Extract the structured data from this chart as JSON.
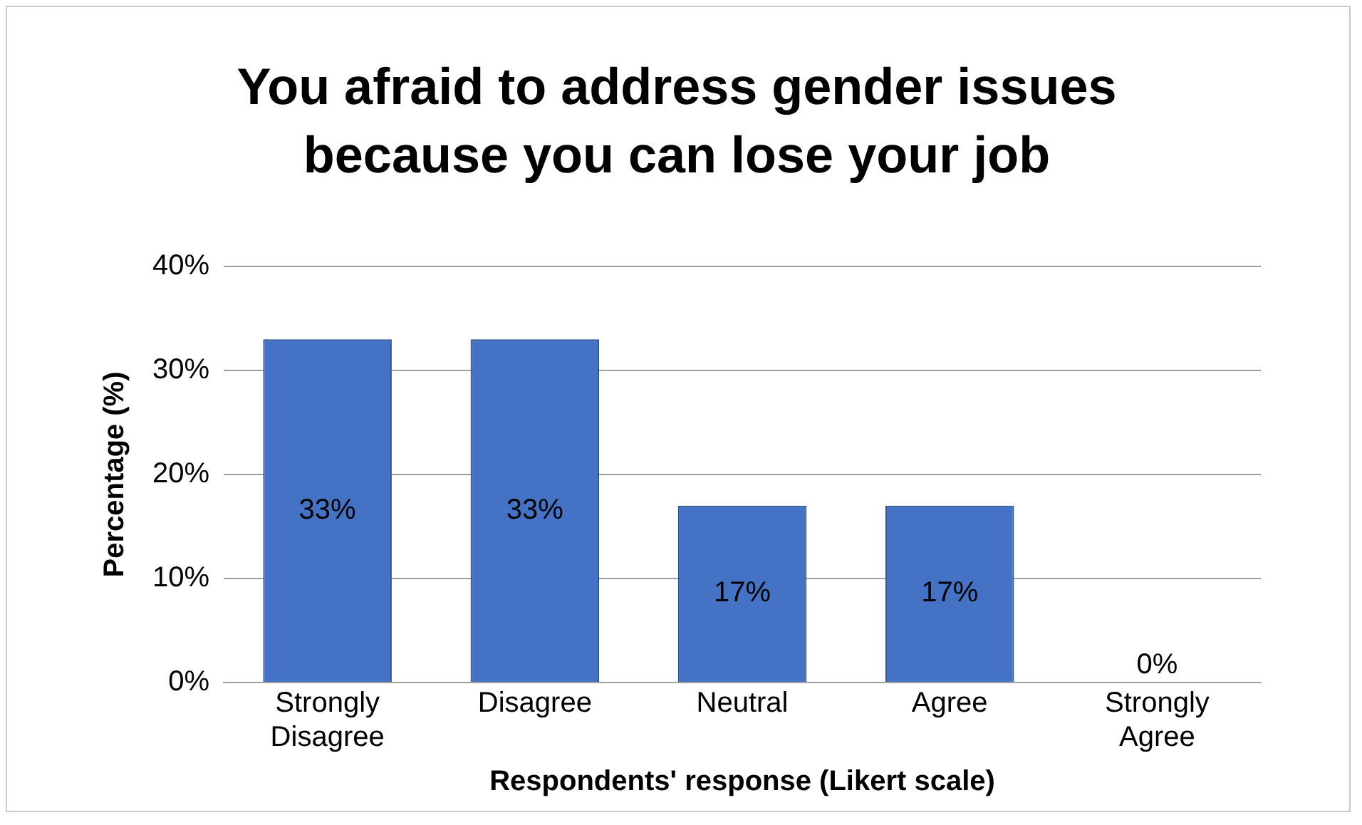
{
  "chart_data": {
    "type": "bar",
    "title": "You afraid to address gender issues because you can lose your job",
    "xlabel": "Respondents' response (Likert scale)",
    "ylabel": "Percentage (%)",
    "categories": [
      "Strongly Disagree",
      "Disagree",
      "Neutral",
      "Agree",
      "Strongly Agree"
    ],
    "values": [
      33,
      33,
      17,
      17,
      0
    ],
    "color": "#4472c4",
    "value_labels": [
      "33%",
      "33%",
      "17%",
      "17%",
      "0%"
    ],
    "ylim": [
      0,
      40
    ],
    "yticks": [
      {
        "value": 0,
        "label": "0%"
      },
      {
        "value": 10,
        "label": "10%"
      },
      {
        "value": 20,
        "label": "20%"
      },
      {
        "value": 30,
        "label": "30%"
      },
      {
        "value": 40,
        "label": "40%"
      }
    ],
    "grid": "y"
  }
}
